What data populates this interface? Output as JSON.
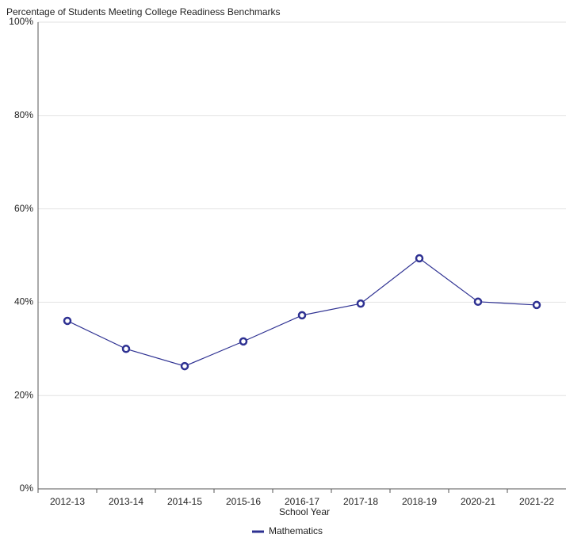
{
  "chart_data": {
    "type": "line",
    "title": "Percentage of Students Meeting College Readiness Benchmarks",
    "x_label": "School Year",
    "categories": [
      "2012-13",
      "2013-14",
      "2014-15",
      "2015-16",
      "2016-17",
      "2017-18",
      "2018-19",
      "2020-21",
      "2021-22"
    ],
    "series": [
      {
        "name": "Mathematics",
        "color": "#2e3192",
        "values": [
          36.0,
          30.0,
          26.3,
          31.6,
          37.2,
          39.7,
          49.4,
          40.1,
          39.4
        ]
      }
    ],
    "ylim": [
      0,
      100
    ],
    "yticks": [
      {
        "value": 0,
        "label": "0%"
      },
      {
        "value": 20,
        "label": "20%"
      },
      {
        "value": 40,
        "label": "40%"
      },
      {
        "value": 60,
        "label": "60%"
      },
      {
        "value": 80,
        "label": "80%"
      },
      {
        "value": 100,
        "label": "100%"
      }
    ],
    "grid": true
  }
}
